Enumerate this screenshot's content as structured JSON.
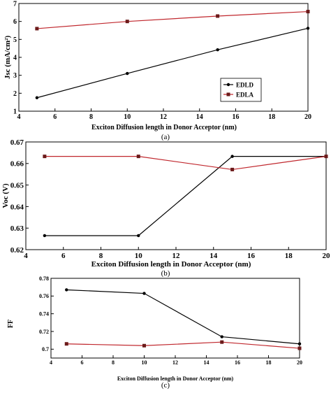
{
  "chart_data": [
    {
      "type": "line",
      "panel_label": "(a)",
      "xlabel": "Exciton Diffusion length in Donor  Acceptor (nm)",
      "ylabel": "Jsc (mA/cm²)",
      "xlim": [
        4,
        20
      ],
      "ylim": [
        1,
        7
      ],
      "xticks": [
        "4",
        "6",
        "8",
        "10",
        "12",
        "14",
        "16",
        "18",
        "20"
      ],
      "yticks": [
        "1",
        "2",
        "3",
        "4",
        "5",
        "6",
        "7"
      ],
      "legend": "lower-right",
      "grid": false,
      "series": [
        {
          "name": "EDLD",
          "color": "#000000",
          "marker": "circle",
          "x": [
            5,
            10,
            15,
            20
          ],
          "values": [
            1.75,
            3.1,
            4.42,
            5.62
          ]
        },
        {
          "name": "EDLA",
          "color": "#c0272d",
          "marker": "square",
          "x": [
            5,
            10,
            15,
            20
          ],
          "values": [
            5.6,
            6.0,
            6.3,
            6.55
          ]
        }
      ]
    },
    {
      "type": "line",
      "panel_label": "(b)",
      "xlabel": "Exciton Diffusion length in Donor  Acceptor (nm)",
      "ylabel": "Voc (V)",
      "xlim": [
        4,
        20
      ],
      "ylim": [
        0.62,
        0.67
      ],
      "xticks": [
        "4",
        "6",
        "8",
        "10",
        "12",
        "14",
        "16",
        "18",
        "20"
      ],
      "yticks": [
        "0.62",
        "0.63",
        "0.64",
        "0.65",
        "0.66",
        "0.67"
      ],
      "grid": false,
      "series": [
        {
          "color": "#000000",
          "marker": "circle",
          "x": [
            5,
            10,
            15,
            20
          ],
          "values": [
            0.6265,
            0.6265,
            0.6633,
            0.6633
          ]
        },
        {
          "color": "#c0272d",
          "marker": "square",
          "x": [
            5,
            10,
            15,
            20
          ],
          "values": [
            0.6633,
            0.6633,
            0.6572,
            0.6633
          ]
        }
      ]
    },
    {
      "type": "line",
      "panel_label": "(c)",
      "xlabel": "Exciton Diffusion length in Donor  Acceptor (nm)",
      "ylabel": "FF",
      "xlim": [
        4,
        20
      ],
      "ylim": [
        0.69,
        0.78
      ],
      "xticks": [
        "4",
        "6",
        "8",
        "10",
        "12",
        "14",
        "16",
        "18",
        "20"
      ],
      "yticks": [
        "0.7",
        "0.72",
        "0.74",
        "0.76",
        "0.78"
      ],
      "grid": false,
      "series": [
        {
          "color": "#000000",
          "marker": "circle",
          "x": [
            5,
            10,
            15,
            20
          ],
          "values": [
            0.767,
            0.763,
            0.714,
            0.706
          ]
        },
        {
          "color": "#c0272d",
          "marker": "square",
          "x": [
            5,
            10,
            15,
            20
          ],
          "values": [
            0.706,
            0.704,
            0.708,
            0.701
          ]
        }
      ]
    }
  ]
}
